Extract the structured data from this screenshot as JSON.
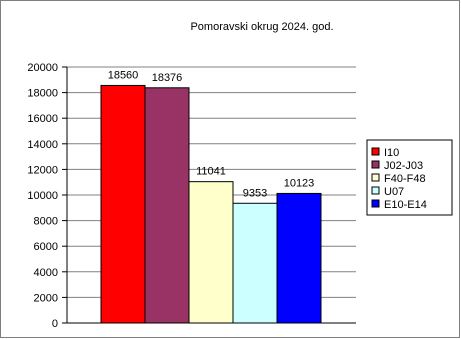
{
  "chart_data": {
    "type": "bar",
    "title": "Pomoravski okrug 2024. god.",
    "xlabel": "",
    "ylabel": "",
    "ylim": [
      0,
      20000
    ],
    "yticks": [
      0,
      2000,
      4000,
      6000,
      8000,
      10000,
      12000,
      14000,
      16000,
      18000,
      20000
    ],
    "grid": "horizontal",
    "legend_position": "right",
    "series": [
      {
        "name": "I10",
        "value": 18560,
        "color": "#ff0000"
      },
      {
        "name": "J02-J03",
        "value": 18376,
        "color": "#993366"
      },
      {
        "name": "F40-F48",
        "value": 11041,
        "color": "#ffffcc"
      },
      {
        "name": "U07",
        "value": 9353,
        "color": "#ccffff"
      },
      {
        "name": "E10-E14",
        "value": 10123,
        "color": "#0000ff"
      }
    ]
  }
}
